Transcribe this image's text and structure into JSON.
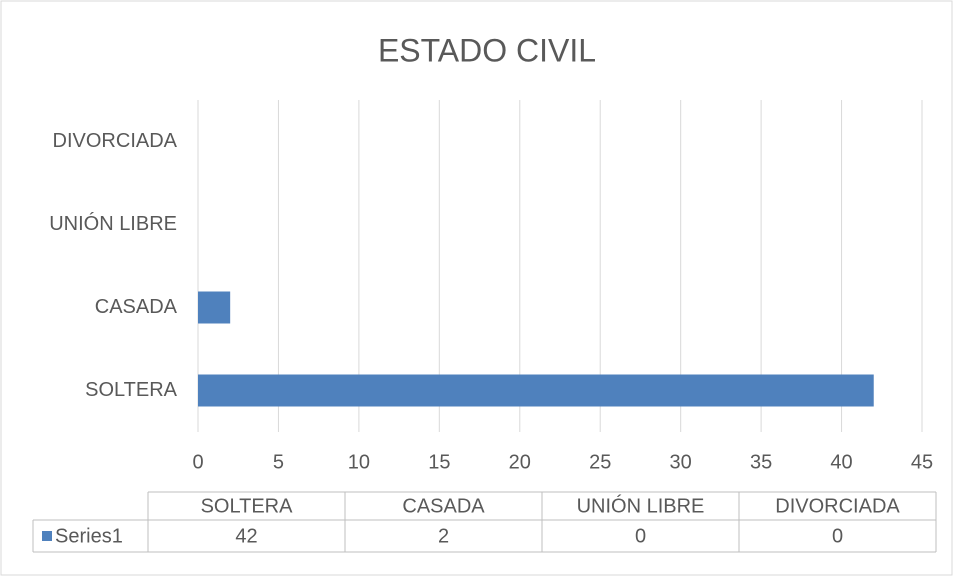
{
  "chart_data": {
    "type": "hbar",
    "title": "ESTADO CIVIL",
    "categories": [
      "SOLTERA",
      "CASADA",
      "UNIÓN LIBRE",
      "DIVORCIADA"
    ],
    "series": [
      {
        "name": "Series1",
        "color": "#4f81bd",
        "values": [
          42,
          2,
          0,
          0
        ]
      }
    ],
    "xlim": [
      0,
      45
    ],
    "xticks": [
      0,
      5,
      10,
      15,
      20,
      25,
      30,
      35,
      40,
      45
    ],
    "grid": true,
    "legend": "data-table"
  }
}
